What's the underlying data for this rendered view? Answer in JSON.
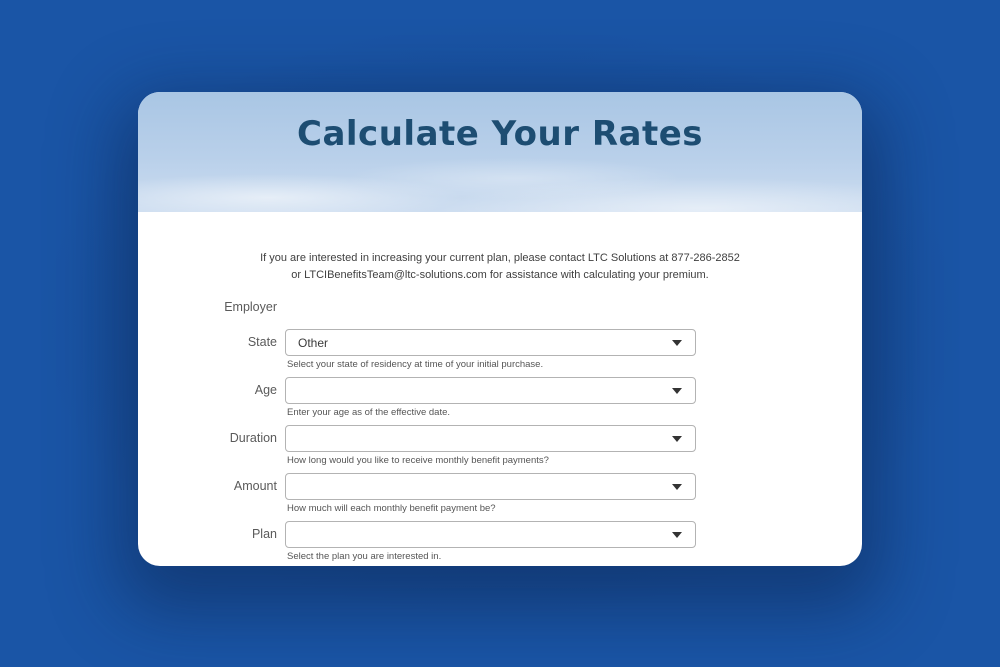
{
  "header": {
    "title": "Calculate Your Rates"
  },
  "intro": {
    "line1": "If you are interested in increasing your current plan, please contact LTC Solutions at 877-286-2852",
    "line2": "or LTCIBenefitsTeam@ltc-solutions.com for assistance with calculating your premium."
  },
  "form": {
    "employer": {
      "label": "Employer",
      "value": ""
    },
    "fields": [
      {
        "label": "State",
        "value": "Other",
        "help": "Select your state of residency at time of your initial purchase."
      },
      {
        "label": "Age",
        "value": "",
        "help": "Enter your age as of the effective date."
      },
      {
        "label": "Duration",
        "value": "",
        "help": "How long would you like to receive monthly benefit payments?"
      },
      {
        "label": "Amount",
        "value": "",
        "help": "How much will each monthly benefit payment be?"
      },
      {
        "label": "Plan",
        "value": "",
        "help": "Select the plan you are interested in."
      }
    ]
  },
  "colors": {
    "page_background": "#1a55a6",
    "title_text": "#1d4d72",
    "sky_top": "#a9c6e4",
    "sky_bottom": "#cdddf0"
  }
}
